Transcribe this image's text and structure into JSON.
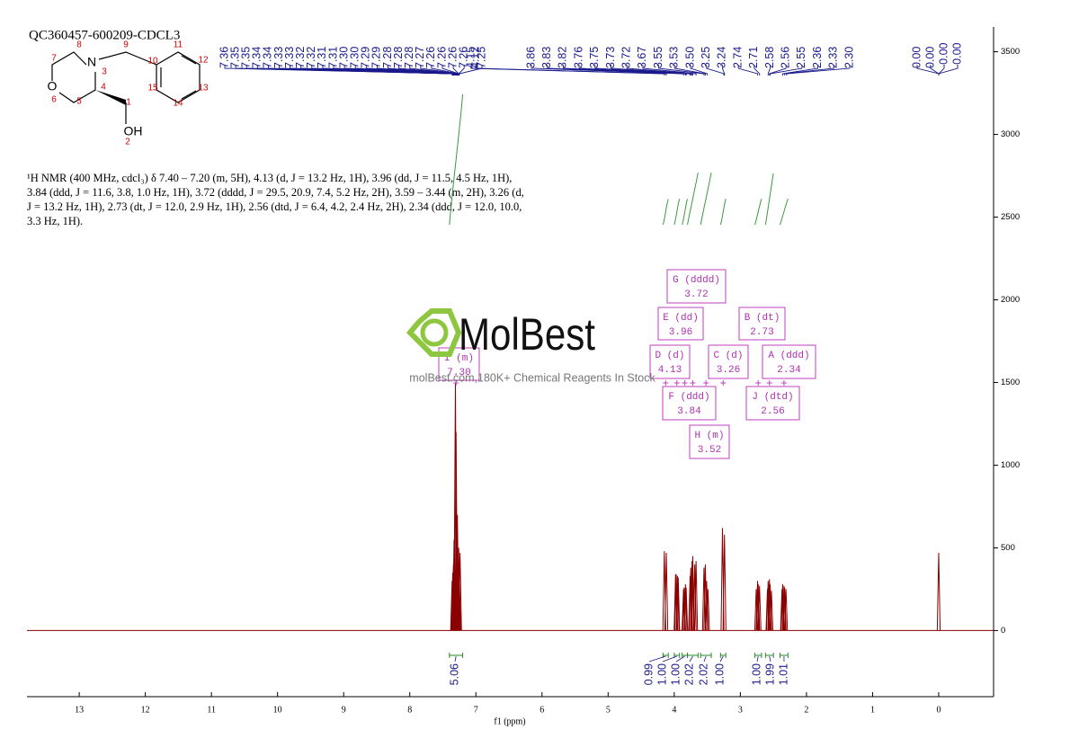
{
  "chart_data": {
    "type": "nmr",
    "title": "QC360457-600209-CDCL3",
    "description": "¹H NMR (400 MHz, cdcl₃) δ 7.40 – 7.20 (m, 5H), 4.13 (d, J = 13.2 Hz, 1H), 3.96 (dd, J = 11.5, 4.5 Hz, 1H), 3.84 (ddd, J = 11.6, 3.8, 1.0 Hz, 1H), 3.72 (dddd, J = 29.5, 20.9, 7.4, 5.2 Hz, 2H), 3.59 – 3.44 (m, 2H), 3.26 (d, J = 13.2 Hz, 1H), 2.73 (dt, J = 12.0, 2.9 Hz, 1H), 2.56 (dtd, J = 6.4, 4.2, 2.4 Hz, 2H), 2.34 (ddd, J = 12.0, 10.0, 3.3 Hz, 1H).",
    "xlabel": "f1 (ppm)",
    "xlim": [
      13.79,
      -0.83
    ],
    "xticks": [
      0,
      1,
      2,
      3,
      4,
      5,
      6,
      7,
      8,
      9,
      10,
      11,
      12,
      13
    ],
    "ylim": [
      -400,
      3650
    ],
    "yticks": [
      0,
      500,
      1000,
      1500,
      2000,
      2500,
      3000,
      3500
    ],
    "color": "#8b0000",
    "x": [
      7.36,
      7.35,
      7.34,
      7.33,
      7.32,
      7.31,
      7.3,
      7.29,
      7.28,
      7.27,
      7.26,
      7.25,
      7.24,
      4.15,
      4.12,
      3.98,
      3.97,
      3.95,
      3.94,
      3.86,
      3.85,
      3.83,
      3.82,
      3.76,
      3.75,
      3.73,
      3.72,
      3.69,
      3.67,
      3.55,
      3.53,
      3.51,
      3.49,
      3.27,
      3.24,
      2.76,
      2.74,
      2.73,
      2.71,
      2.59,
      2.58,
      2.56,
      2.55,
      2.53,
      2.37,
      2.36,
      2.34,
      2.33,
      2.31,
      0
    ],
    "values": [
      300,
      350,
      400,
      550,
      650,
      1500,
      1200,
      600,
      700,
      400,
      500,
      300,
      470,
      480,
      470,
      340,
      340,
      330,
      320,
      250,
      260,
      280,
      260,
      330,
      380,
      420,
      450,
      400,
      420,
      380,
      400,
      300,
      250,
      620,
      580,
      250,
      300,
      280,
      270,
      250,
      300,
      310,
      280,
      240,
      250,
      280,
      270,
      260,
      250,
      470
    ],
    "peak_labels": {
      "values": [
        7.36,
        7.35,
        7.35,
        7.34,
        7.34,
        7.33,
        7.33,
        7.32,
        7.32,
        7.31,
        7.31,
        7.3,
        7.3,
        7.29,
        7.29,
        7.28,
        7.28,
        7.28,
        7.27,
        7.26,
        7.26,
        7.26,
        7.26,
        4.15,
        4.12,
        7.25,
        3.86,
        3.83,
        3.82,
        3.76,
        3.75,
        3.73,
        3.72,
        3.67,
        3.55,
        3.53,
        3.5,
        3.25,
        3.24,
        2.74,
        2.71,
        2.58,
        2.56,
        2.55,
        2.36,
        2.33,
        2.3,
        0,
        0,
        0,
        0
      ],
      "value_labels": [
        "7.36",
        "7.35",
        "7.35",
        "7.34",
        "7.34",
        "7.33",
        "7.33",
        "7.32",
        "7.32",
        "7.31",
        "7.31",
        "7.30",
        "7.30",
        "7.29",
        "7.29",
        "7.28",
        "7.28",
        "7.28",
        "7.27",
        "7.26",
        "7.26",
        "7.26",
        "7.26",
        "4.15",
        "4.12",
        "7.25",
        "3.86",
        "3.83",
        "3.82",
        "3.76",
        "3.75",
        "3.73",
        "3.72",
        "3.67",
        "3.55",
        "3.53",
        "3.50",
        "3.25",
        "3.24",
        "2.74",
        "2.71",
        "2.58",
        "2.56",
        "2.55",
        "2.36",
        "2.33",
        "2.30",
        "0.00",
        "0.00",
        "-0.00",
        "-0.00"
      ]
    },
    "integrals": {
      "ranges": [
        [
          7.4,
          7.2
        ],
        [
          4.17,
          4.09
        ],
        [
          4.0,
          3.92
        ],
        [
          3.88,
          3.8
        ],
        [
          3.8,
          3.64
        ],
        [
          3.6,
          3.44
        ],
        [
          3.3,
          3.22
        ],
        [
          2.78,
          2.68
        ],
        [
          2.62,
          2.5
        ],
        [
          2.4,
          2.28
        ]
      ],
      "values": [
        5.06,
        0.99,
        1,
        1,
        2.02,
        2.02,
        1,
        1,
        1.99,
        1.01
      ],
      "value_labels": [
        "5.06",
        "0.99",
        "1.00",
        "1.00",
        "2.02",
        "2.02",
        "1.00",
        "1.00",
        "1.99",
        "1.01"
      ]
    },
    "multiplets": {
      "names": [
        "I (m)",
        "G (dddd)",
        "E (dd)",
        "B (dt)",
        "D (d)",
        "C (d)",
        "A (ddd)",
        "F (ddd)",
        "J (dtd)",
        "H (m)"
      ],
      "shifts": [
        7.3,
        3.72,
        3.96,
        2.73,
        4.13,
        3.26,
        2.34,
        3.84,
        2.56,
        3.52
      ],
      "shift_labels": [
        "7.30",
        "3.72",
        "3.96",
        "2.73",
        "4.13",
        "3.26",
        "2.34",
        "3.84",
        "2.56",
        "3.52"
      ]
    }
  },
  "structure": {
    "atoms": [
      "N",
      "O",
      "OH"
    ],
    "numbers": [
      1,
      2,
      3,
      4,
      5,
      6,
      7,
      8,
      9,
      10,
      11,
      12,
      13,
      14,
      15
    ]
  },
  "watermark": {
    "brand": "MolBest",
    "tagline": "molBest.com,180K+ Chemical Reagents In Stock"
  }
}
